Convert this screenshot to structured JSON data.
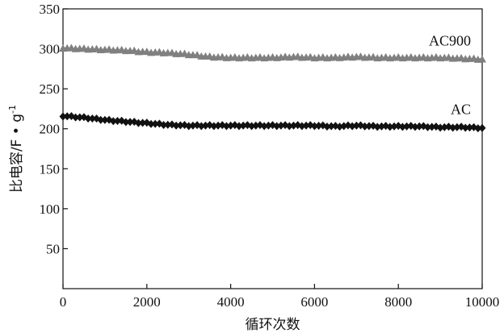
{
  "chart_data": {
    "type": "scatter",
    "title": "",
    "xlabel": "循环次数",
    "ylabel": "比电容/F • g",
    "ylabel_superscript": "-1",
    "xlim": [
      0,
      10000
    ],
    "ylim": [
      0,
      350
    ],
    "x_ticks": [
      0,
      2000,
      4000,
      6000,
      8000,
      10000
    ],
    "y_ticks": [
      50,
      100,
      150,
      200,
      250,
      300,
      350
    ],
    "grid": false,
    "legend": "none",
    "series": [
      {
        "name": "AC900",
        "marker": "triangle",
        "color": "#808080",
        "x": [
          0,
          500,
          1000,
          1500,
          2000,
          2500,
          3000,
          3500,
          4000,
          4500,
          5000,
          5500,
          6000,
          6500,
          7000,
          7500,
          8000,
          8500,
          9000,
          9500,
          10000
        ],
        "y": [
          301,
          300,
          299,
          298,
          296,
          295,
          293,
          290,
          289,
          289,
          289,
          290,
          289,
          289,
          290,
          289,
          289,
          289,
          289,
          288,
          287
        ]
      },
      {
        "name": "AC",
        "marker": "diamond",
        "color": "#111111",
        "x": [
          0,
          500,
          1000,
          1500,
          2000,
          2500,
          3000,
          3500,
          4000,
          4500,
          5000,
          5500,
          6000,
          6500,
          7000,
          7500,
          8000,
          8500,
          9000,
          9500,
          10000
        ],
        "y": [
          216,
          214,
          211,
          209,
          207,
          205,
          204,
          204,
          204,
          204,
          204,
          204,
          204,
          203,
          204,
          203,
          203,
          203,
          202,
          202,
          201
        ]
      }
    ]
  }
}
